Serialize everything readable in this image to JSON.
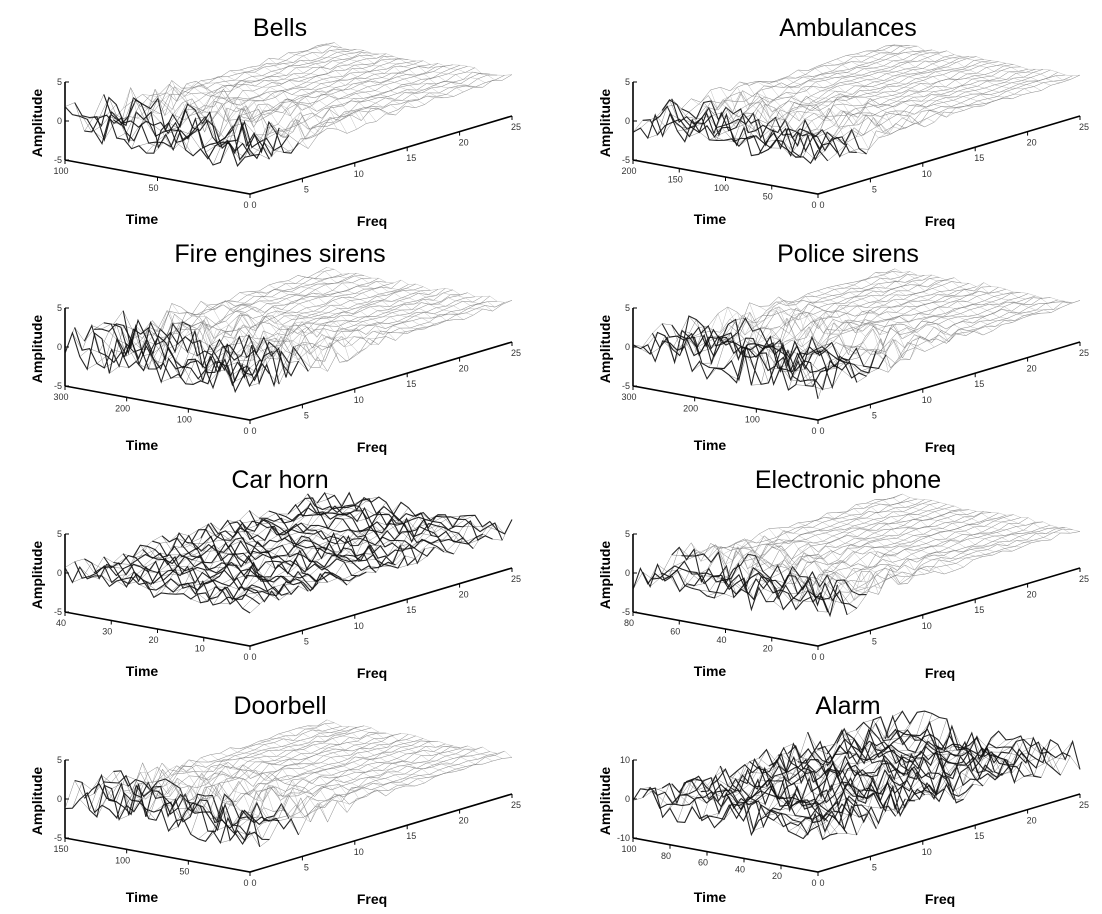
{
  "chart_data": [
    {
      "type": "surface",
      "title": "Bells",
      "xlabel": "Time",
      "ylabel": "Freq",
      "zlabel": "Amplitude",
      "time_ticks": [
        "100",
        "50",
        "0"
      ],
      "freq_ticks": [
        "0",
        "5",
        "10",
        "15",
        "20",
        "25"
      ],
      "amp_ticks": [
        "5",
        "0",
        "-5"
      ],
      "time_range": [
        0,
        130
      ],
      "freq_range": [
        0,
        25
      ],
      "amp_range": [
        -5,
        5
      ],
      "active_freq_max": 5,
      "density": 0.95
    },
    {
      "type": "surface",
      "title": "Ambulances",
      "xlabel": "Time",
      "ylabel": "Freq",
      "zlabel": "Amplitude",
      "time_ticks": [
        "200",
        "150",
        "100",
        "50",
        "0"
      ],
      "freq_ticks": [
        "0",
        "5",
        "10",
        "15",
        "20",
        "25"
      ],
      "amp_ticks": [
        "5",
        "0",
        "-5"
      ],
      "time_range": [
        0,
        200
      ],
      "freq_range": [
        0,
        25
      ],
      "amp_range": [
        -5,
        5
      ],
      "active_freq_max": 5,
      "density": 0.75
    },
    {
      "type": "surface",
      "title": "Fire engines sirens",
      "xlabel": "Time",
      "ylabel": "Freq",
      "zlabel": "Amplitude",
      "time_ticks": [
        "300",
        "200",
        "100",
        "0"
      ],
      "freq_ticks": [
        "0",
        "5",
        "10",
        "15",
        "20",
        "25"
      ],
      "amp_ticks": [
        "5",
        "0",
        "-5"
      ],
      "time_range": [
        0,
        300
      ],
      "freq_range": [
        0,
        25
      ],
      "amp_range": [
        -5,
        5
      ],
      "active_freq_max": 6,
      "density": 1.0
    },
    {
      "type": "surface",
      "title": "Police sirens",
      "xlabel": "Time",
      "ylabel": "Freq",
      "zlabel": "Amplitude",
      "time_ticks": [
        "300",
        "200",
        "100",
        "0"
      ],
      "freq_ticks": [
        "0",
        "5",
        "10",
        "15",
        "20",
        "25"
      ],
      "amp_ticks": [
        "5",
        "0",
        "-5"
      ],
      "time_range": [
        0,
        300
      ],
      "freq_range": [
        0,
        25
      ],
      "amp_range": [
        -5,
        5
      ],
      "active_freq_max": 7,
      "density": 0.95
    },
    {
      "type": "surface",
      "title": "Car horn",
      "xlabel": "Time",
      "ylabel": "Freq",
      "zlabel": "Amplitude",
      "time_ticks": [
        "40",
        "30",
        "20",
        "10",
        "0"
      ],
      "freq_ticks": [
        "0",
        "5",
        "10",
        "15",
        "20",
        "25"
      ],
      "amp_ticks": [
        "5",
        "0",
        "-5"
      ],
      "time_range": [
        0,
        40
      ],
      "freq_range": [
        0,
        25
      ],
      "amp_range": [
        -5,
        5
      ],
      "active_freq_max": 25,
      "density": 0.5
    },
    {
      "type": "surface",
      "title": "Electronic phone",
      "xlabel": "Time",
      "ylabel": "Freq",
      "zlabel": "Amplitude",
      "time_ticks": [
        "80",
        "60",
        "40",
        "20",
        "0"
      ],
      "freq_ticks": [
        "0",
        "5",
        "10",
        "15",
        "20",
        "25"
      ],
      "amp_ticks": [
        "5",
        "0",
        "-5"
      ],
      "time_range": [
        0,
        80
      ],
      "freq_range": [
        0,
        25
      ],
      "amp_range": [
        -5,
        5
      ],
      "active_freq_max": 5,
      "density": 0.85
    },
    {
      "type": "surface",
      "title": "Doorbell",
      "xlabel": "Time",
      "ylabel": "Freq",
      "zlabel": "Amplitude",
      "time_ticks": [
        "150",
        "100",
        "50",
        "0"
      ],
      "freq_ticks": [
        "0",
        "5",
        "10",
        "15",
        "20",
        "25"
      ],
      "amp_ticks": [
        "5",
        "0",
        "-5"
      ],
      "time_range": [
        0,
        150
      ],
      "freq_range": [
        0,
        25
      ],
      "amp_range": [
        -5,
        5
      ],
      "active_freq_max": 5,
      "density": 0.9
    },
    {
      "type": "surface",
      "title": "Alarm",
      "xlabel": "Time",
      "ylabel": "Freq",
      "zlabel": "Amplitude",
      "time_ticks": [
        "100",
        "80",
        "60",
        "40",
        "20",
        "0"
      ],
      "freq_ticks": [
        "0",
        "5",
        "10",
        "15",
        "20",
        "25"
      ],
      "amp_ticks": [
        "10",
        "0",
        "-10"
      ],
      "time_range": [
        0,
        100
      ],
      "freq_range": [
        0,
        25
      ],
      "amp_range": [
        -10,
        10
      ],
      "active_freq_max": 25,
      "density": 0.8
    }
  ]
}
